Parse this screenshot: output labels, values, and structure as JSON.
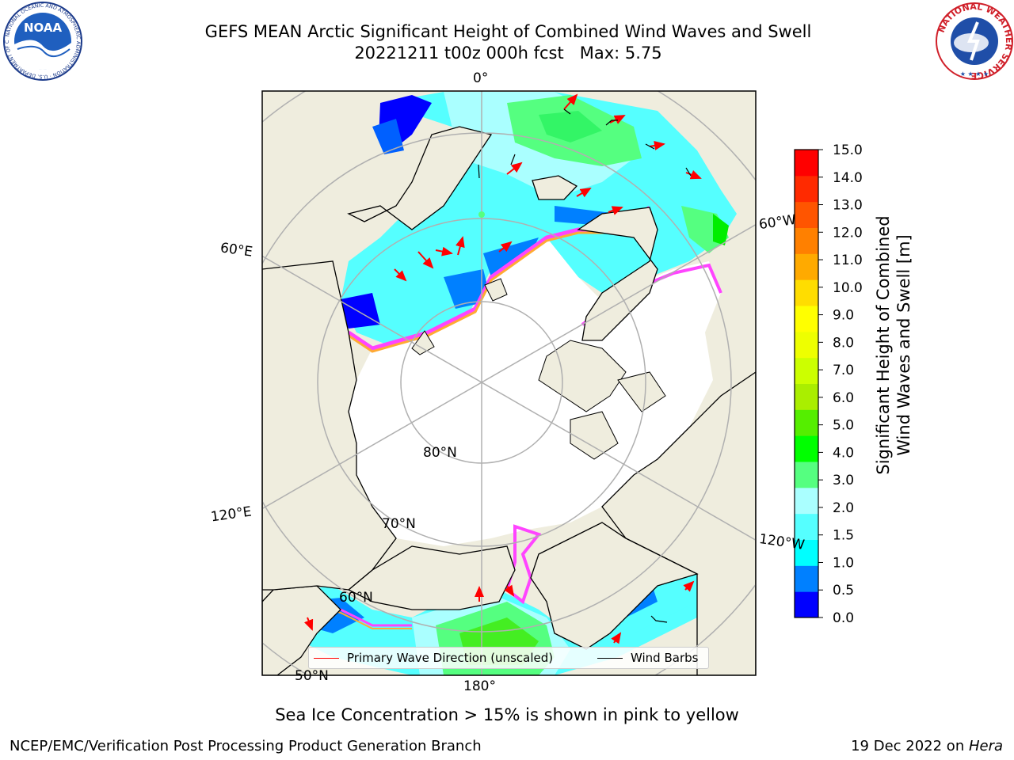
{
  "header": {
    "title_line1": "GEFS MEAN Arctic Significant Height of Combined Wind Waves and Swell",
    "title_line2": "20221211 t00z 000h fcst   Max: 5.75"
  },
  "logos": {
    "left": {
      "icon": "noaa-logo",
      "text": "NOAA",
      "ring_text": "NATIONAL OCEANIC AND ATMOSPHERIC ADMINISTRATION · U.S. DEPARTMENT OF COMMERCE"
    },
    "right": {
      "icon": "nws-logo",
      "ring_text": "NATIONAL WEATHER SERVICE"
    }
  },
  "map": {
    "projection": "north polar stereographic",
    "longitude_labels": {
      "top": "0°",
      "left_upper": "60°E",
      "left_lower": "120°E",
      "bottom": "180°",
      "right_upper": "60°W",
      "right_lower": "120°W"
    },
    "latitude_labels": {
      "inner": "80°N",
      "mid": "70°N",
      "outer": "60°N",
      "edge": "50°N"
    },
    "colors": {
      "land": "#efedde",
      "ocean_base": "#55ffff",
      "sea_ice": "#ffffff",
      "ice_edge_pink": "#ff44ff",
      "ice_edge_orange": "#ffaa33",
      "coastline": "#000000",
      "grid": "#b0b0b0"
    }
  },
  "legend": {
    "wave_label": "Primary Wave Direction (unscaled)",
    "wave_color": "#ff0000",
    "barb_label": "Wind Barbs",
    "barb_color": "#000000"
  },
  "colorbar": {
    "label_line1": "Significant Height of Combined",
    "label_line2": "Wind Waves and Swell [m]",
    "ticks": [
      "0.0",
      "0.5",
      "1.0",
      "1.5",
      "2.0",
      "3.0",
      "4.0",
      "5.0",
      "6.0",
      "7.0",
      "8.0",
      "9.0",
      "10.0",
      "11.0",
      "12.0",
      "13.0",
      "14.0",
      "15.0"
    ],
    "colors": [
      "#0000ff",
      "#0080ff",
      "#00ffff",
      "#55ffff",
      "#aaffff",
      "#55ff80",
      "#00ff00",
      "#55ee00",
      "#aaee00",
      "#ccff00",
      "#eeff00",
      "#ffff00",
      "#ffdd00",
      "#ffaa00",
      "#ff8000",
      "#ff5500",
      "#ff2a00",
      "#ff0000"
    ]
  },
  "footer": {
    "note": "Sea Ice Concentration > 15% is shown in pink to yellow",
    "credit": "NCEP/EMC/Verification Post Processing Product Generation Branch",
    "date": "19 Dec 2022 on ",
    "host": "Hera"
  }
}
